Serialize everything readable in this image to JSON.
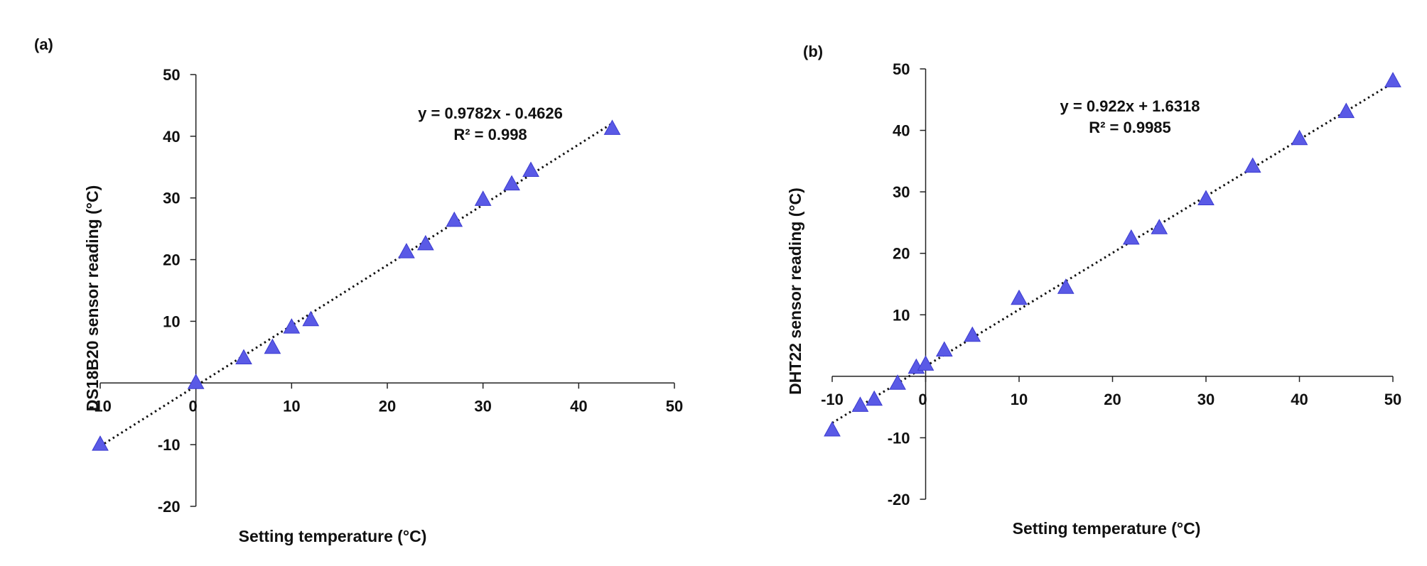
{
  "chart_data": [
    {
      "type": "scatter",
      "panel_label": "(a)",
      "xlabel": "Setting temperature (°C)",
      "ylabel": "DS18B20 sensor reading (°C)",
      "xlim": [
        -10,
        50
      ],
      "ylim": [
        -20,
        50
      ],
      "xticks": [
        -10,
        0,
        10,
        20,
        30,
        40,
        50
      ],
      "yticks": [
        -20,
        -10,
        0,
        10,
        20,
        30,
        40,
        50
      ],
      "marker_color": "#5a5ae6",
      "series": [
        {
          "name": "DS18B20",
          "x": [
            -10,
            0,
            5,
            8,
            10,
            12,
            22,
            24,
            27,
            30,
            33,
            35,
            43.5
          ],
          "y": [
            -10,
            0,
            4,
            5.7,
            9,
            10.2,
            21.2,
            22.5,
            26.3,
            29.7,
            32.2,
            34.4,
            41.2
          ]
        }
      ],
      "trendline": {
        "slope": 0.9782,
        "intercept": -0.4626,
        "x_range": [
          -10,
          43.5
        ],
        "equation": "y = 0.9782x - 0.4626",
        "r2": "R² = 0.998"
      }
    },
    {
      "type": "scatter",
      "panel_label": "(b)",
      "xlabel": "Setting temperature (°C)",
      "ylabel": "DHT22 sensor reading (°C)",
      "xlim": [
        -10,
        50
      ],
      "ylim": [
        -20,
        50
      ],
      "xticks": [
        -10,
        0,
        10,
        20,
        30,
        40,
        50
      ],
      "yticks": [
        -20,
        -10,
        0,
        10,
        20,
        30,
        40,
        50
      ],
      "marker_color": "#5a5ae6",
      "series": [
        {
          "name": "DHT22",
          "x": [
            -10,
            -7,
            -5.5,
            -3,
            -1,
            0,
            2,
            5,
            10,
            15,
            22,
            25,
            30,
            35,
            40,
            45,
            50
          ],
          "y": [
            -8.8,
            -4.8,
            -3.8,
            -1.2,
            1.4,
            1.9,
            4.2,
            6.6,
            12.6,
            14.4,
            22.4,
            24.1,
            28.8,
            34.1,
            38.6,
            43,
            48
          ]
        }
      ],
      "trendline": {
        "slope": 0.922,
        "intercept": 1.6318,
        "x_range": [
          -10,
          50
        ],
        "equation": "y = 0.922x + 1.6318",
        "r2": "R² = 0.9985"
      }
    }
  ]
}
